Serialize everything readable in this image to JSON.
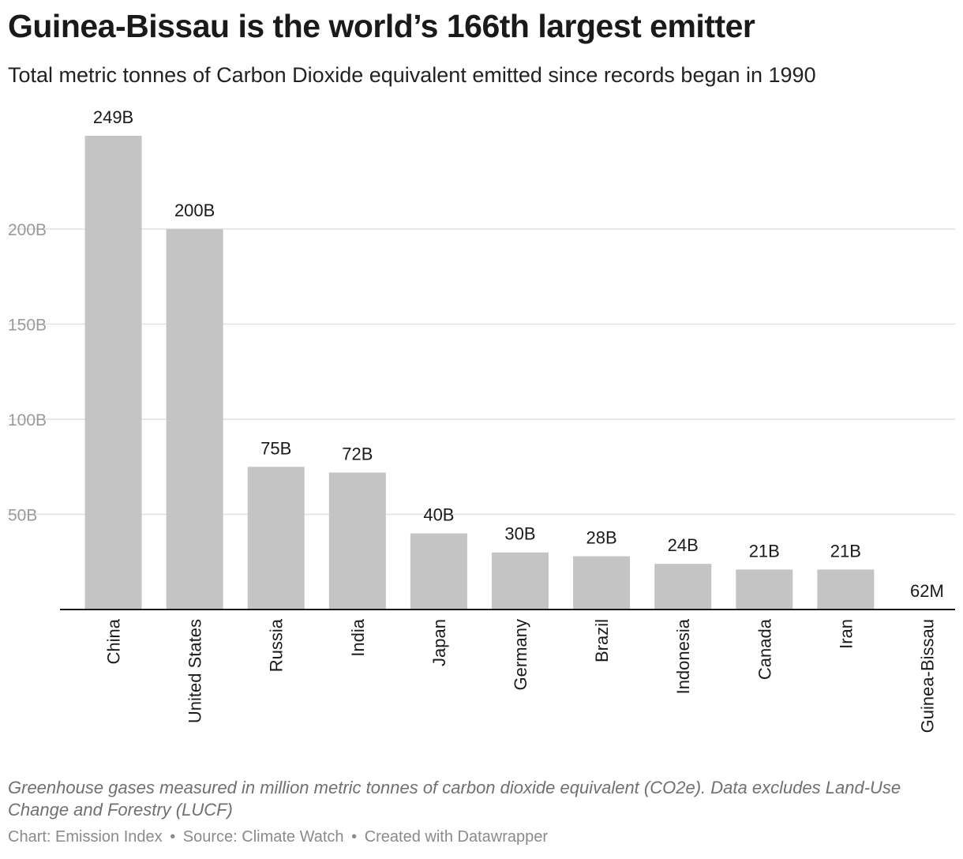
{
  "title": "Guinea-Bissau is the world’s 166th largest emitter",
  "subtitle": "Total metric tonnes of Carbon Dioxide equivalent emitted since records began in 1990",
  "notes": "Greenhouse gases measured in million metric tonnes of carbon dioxide equivalent (CO2e). Data excludes Land-Use Change and Forestry (LUCF)",
  "footer": {
    "chart": "Chart: Emission Index",
    "source": "Source: Climate Watch",
    "created": "Created with Datawrapper",
    "separator": "•"
  },
  "colors": {
    "bar": "#c4c4c4",
    "grid": "#e1e1e1",
    "axis": "#1a1a1a"
  },
  "chart_data": {
    "type": "bar",
    "categories": [
      "China",
      "United States",
      "Russia",
      "India",
      "Japan",
      "Germany",
      "Brazil",
      "Indonesia",
      "Canada",
      "Iran",
      "Guinea-Bissau"
    ],
    "values": [
      249,
      200,
      75,
      72,
      40,
      30,
      28,
      24,
      21,
      21,
      0.062
    ],
    "value_labels": [
      "249B",
      "200B",
      "75B",
      "72B",
      "40B",
      "30B",
      "28B",
      "24B",
      "21B",
      "21B",
      "62M"
    ],
    "unit": "billion tonnes CO2e",
    "y_ticks": [
      50,
      100,
      150,
      200
    ],
    "y_tick_labels": [
      "50B",
      "100B",
      "150B",
      "200B"
    ],
    "ylim": [
      0,
      249
    ],
    "grid": true,
    "xlabel": "",
    "ylabel": ""
  }
}
